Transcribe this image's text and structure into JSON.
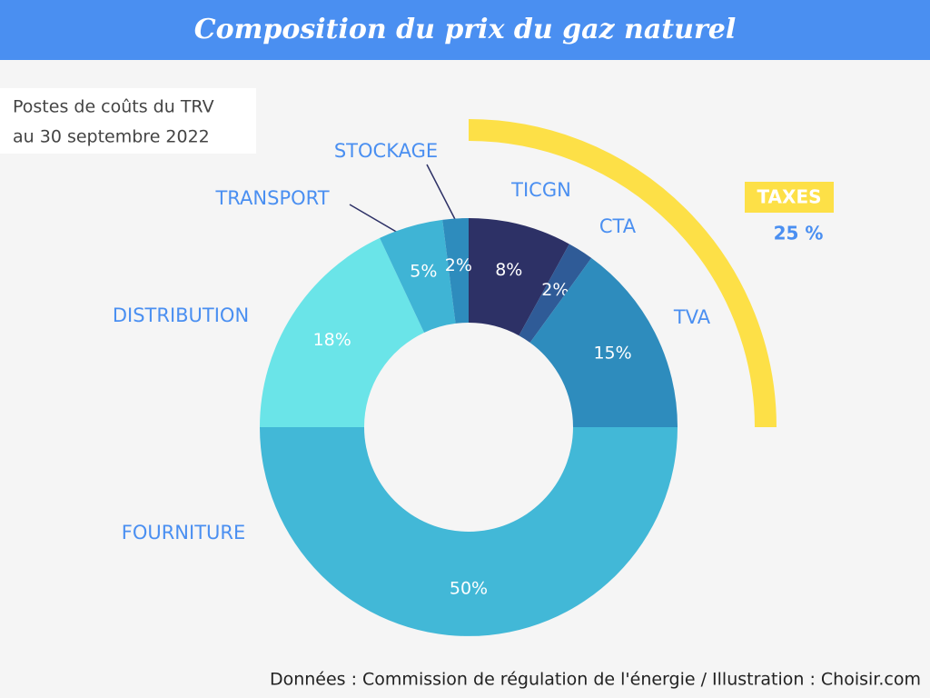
{
  "chart_data": {
    "type": "donut",
    "title": "Composition du prix du gaz naturel",
    "subtitle": [
      "Postes de coûts du TRV",
      "au 30 septembre 2022"
    ],
    "categories": [
      "TICGN",
      "CTA",
      "TVA",
      "FOURNITURE",
      "DISTRIBUTION",
      "TRANSPORT",
      "STOCKAGE"
    ],
    "values": [
      8,
      2,
      15,
      50,
      18,
      5,
      2
    ],
    "value_labels": [
      "8%",
      "2%",
      "15%",
      "50%",
      "18%",
      "5%",
      "2%"
    ],
    "colors": [
      "#2d3166",
      "#2f5b97",
      "#2e8cbd",
      "#42b8d7",
      "#6ae4e8",
      "#3fb4d5",
      "#2e8cbd"
    ],
    "group": {
      "label": "TAXES",
      "value": 25,
      "value_label": "25 %",
      "color": "#fde047"
    },
    "source": "Données : Commission de régulation de l'énergie / Illustration : Choisir.com"
  }
}
